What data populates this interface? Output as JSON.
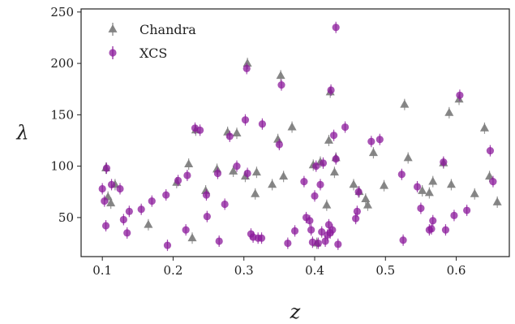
{
  "chart_data": {
    "type": "scatter",
    "xlabel": "z",
    "ylabel": "λ",
    "xlim": [
      0.07,
      0.675
    ],
    "ylim": [
      12,
      253
    ],
    "xticks": [
      0.1,
      0.2,
      0.3,
      0.4,
      0.5,
      0.6
    ],
    "xtick_labels": [
      "0.1",
      "0.2",
      "0.3",
      "0.4",
      "0.5",
      "0.6"
    ],
    "yticks": [
      50,
      100,
      150,
      200,
      250
    ],
    "ytick_labels": [
      "50",
      "100",
      "150",
      "200",
      "250"
    ],
    "grid": false,
    "legend": "top-left",
    "series": [
      {
        "name": "Chandra",
        "marker": "triangle",
        "color": "#7f7f7f",
        "points": [
          {
            "x": 0.105,
            "y": 98
          },
          {
            "x": 0.108,
            "y": 70
          },
          {
            "x": 0.112,
            "y": 64
          },
          {
            "x": 0.118,
            "y": 82
          },
          {
            "x": 0.165,
            "y": 43
          },
          {
            "x": 0.205,
            "y": 84
          },
          {
            "x": 0.222,
            "y": 102
          },
          {
            "x": 0.227,
            "y": 30
          },
          {
            "x": 0.232,
            "y": 135
          },
          {
            "x": 0.246,
            "y": 76
          },
          {
            "x": 0.262,
            "y": 97
          },
          {
            "x": 0.277,
            "y": 133
          },
          {
            "x": 0.285,
            "y": 95
          },
          {
            "x": 0.29,
            "y": 132
          },
          {
            "x": 0.302,
            "y": 90
          },
          {
            "x": 0.305,
            "y": 200
          },
          {
            "x": 0.316,
            "y": 73
          },
          {
            "x": 0.318,
            "y": 94
          },
          {
            "x": 0.34,
            "y": 82
          },
          {
            "x": 0.348,
            "y": 126
          },
          {
            "x": 0.352,
            "y": 188
          },
          {
            "x": 0.356,
            "y": 90
          },
          {
            "x": 0.368,
            "y": 138
          },
          {
            "x": 0.398,
            "y": 101
          },
          {
            "x": 0.403,
            "y": 25
          },
          {
            "x": 0.408,
            "y": 104
          },
          {
            "x": 0.417,
            "y": 62
          },
          {
            "x": 0.42,
            "y": 125
          },
          {
            "x": 0.422,
            "y": 172
          },
          {
            "x": 0.428,
            "y": 94
          },
          {
            "x": 0.43,
            "y": 108
          },
          {
            "x": 0.455,
            "y": 82
          },
          {
            "x": 0.463,
            "y": 75
          },
          {
            "x": 0.472,
            "y": 68
          },
          {
            "x": 0.475,
            "y": 62
          },
          {
            "x": 0.483,
            "y": 113
          },
          {
            "x": 0.498,
            "y": 81
          },
          {
            "x": 0.527,
            "y": 160
          },
          {
            "x": 0.532,
            "y": 108
          },
          {
            "x": 0.552,
            "y": 76
          },
          {
            "x": 0.562,
            "y": 74
          },
          {
            "x": 0.567,
            "y": 85
          },
          {
            "x": 0.582,
            "y": 103
          },
          {
            "x": 0.59,
            "y": 152
          },
          {
            "x": 0.593,
            "y": 82
          },
          {
            "x": 0.604,
            "y": 165
          },
          {
            "x": 0.626,
            "y": 73
          },
          {
            "x": 0.64,
            "y": 137
          },
          {
            "x": 0.647,
            "y": 90
          },
          {
            "x": 0.658,
            "y": 65
          }
        ]
      },
      {
        "name": "XCS",
        "marker": "circle",
        "color": "#8b1a9b",
        "points": [
          {
            "x": 0.1,
            "y": 78
          },
          {
            "x": 0.103,
            "y": 66
          },
          {
            "x": 0.105,
            "y": 42
          },
          {
            "x": 0.106,
            "y": 98
          },
          {
            "x": 0.113,
            "y": 82
          },
          {
            "x": 0.125,
            "y": 78
          },
          {
            "x": 0.13,
            "y": 48
          },
          {
            "x": 0.135,
            "y": 35
          },
          {
            "x": 0.138,
            "y": 56
          },
          {
            "x": 0.155,
            "y": 58
          },
          {
            "x": 0.17,
            "y": 66
          },
          {
            "x": 0.19,
            "y": 72
          },
          {
            "x": 0.192,
            "y": 23
          },
          {
            "x": 0.207,
            "y": 86
          },
          {
            "x": 0.218,
            "y": 38
          },
          {
            "x": 0.22,
            "y": 91
          },
          {
            "x": 0.231,
            "y": 137
          },
          {
            "x": 0.238,
            "y": 135
          },
          {
            "x": 0.247,
            "y": 72
          },
          {
            "x": 0.248,
            "y": 51
          },
          {
            "x": 0.263,
            "y": 93
          },
          {
            "x": 0.265,
            "y": 27
          },
          {
            "x": 0.273,
            "y": 63
          },
          {
            "x": 0.28,
            "y": 129
          },
          {
            "x": 0.29,
            "y": 100
          },
          {
            "x": 0.302,
            "y": 145
          },
          {
            "x": 0.304,
            "y": 195
          },
          {
            "x": 0.305,
            "y": 93
          },
          {
            "x": 0.31,
            "y": 34
          },
          {
            "x": 0.313,
            "y": 31
          },
          {
            "x": 0.32,
            "y": 30
          },
          {
            "x": 0.325,
            "y": 30
          },
          {
            "x": 0.326,
            "y": 141
          },
          {
            "x": 0.35,
            "y": 121
          },
          {
            "x": 0.353,
            "y": 179
          },
          {
            "x": 0.362,
            "y": 25
          },
          {
            "x": 0.372,
            "y": 37
          },
          {
            "x": 0.385,
            "y": 85
          },
          {
            "x": 0.388,
            "y": 50
          },
          {
            "x": 0.393,
            "y": 47
          },
          {
            "x": 0.395,
            "y": 38
          },
          {
            "x": 0.397,
            "y": 26
          },
          {
            "x": 0.4,
            "y": 71
          },
          {
            "x": 0.402,
            "y": 100
          },
          {
            "x": 0.405,
            "y": 25
          },
          {
            "x": 0.408,
            "y": 82
          },
          {
            "x": 0.41,
            "y": 36
          },
          {
            "x": 0.412,
            "y": 103
          },
          {
            "x": 0.415,
            "y": 27
          },
          {
            "x": 0.418,
            "y": 33
          },
          {
            "x": 0.42,
            "y": 43
          },
          {
            "x": 0.422,
            "y": 35
          },
          {
            "x": 0.423,
            "y": 174
          },
          {
            "x": 0.425,
            "y": 38
          },
          {
            "x": 0.427,
            "y": 130
          },
          {
            "x": 0.43,
            "y": 235
          },
          {
            "x": 0.43,
            "y": 107
          },
          {
            "x": 0.433,
            "y": 24
          },
          {
            "x": 0.443,
            "y": 138
          },
          {
            "x": 0.458,
            "y": 49
          },
          {
            "x": 0.46,
            "y": 56
          },
          {
            "x": 0.462,
            "y": 75
          },
          {
            "x": 0.48,
            "y": 124
          },
          {
            "x": 0.492,
            "y": 126
          },
          {
            "x": 0.523,
            "y": 92
          },
          {
            "x": 0.525,
            "y": 28
          },
          {
            "x": 0.545,
            "y": 80
          },
          {
            "x": 0.55,
            "y": 59
          },
          {
            "x": 0.562,
            "y": 38
          },
          {
            "x": 0.565,
            "y": 39
          },
          {
            "x": 0.567,
            "y": 47
          },
          {
            "x": 0.582,
            "y": 104
          },
          {
            "x": 0.585,
            "y": 38
          },
          {
            "x": 0.597,
            "y": 52
          },
          {
            "x": 0.605,
            "y": 169
          },
          {
            "x": 0.615,
            "y": 57
          },
          {
            "x": 0.648,
            "y": 115
          },
          {
            "x": 0.652,
            "y": 85
          }
        ]
      }
    ]
  }
}
